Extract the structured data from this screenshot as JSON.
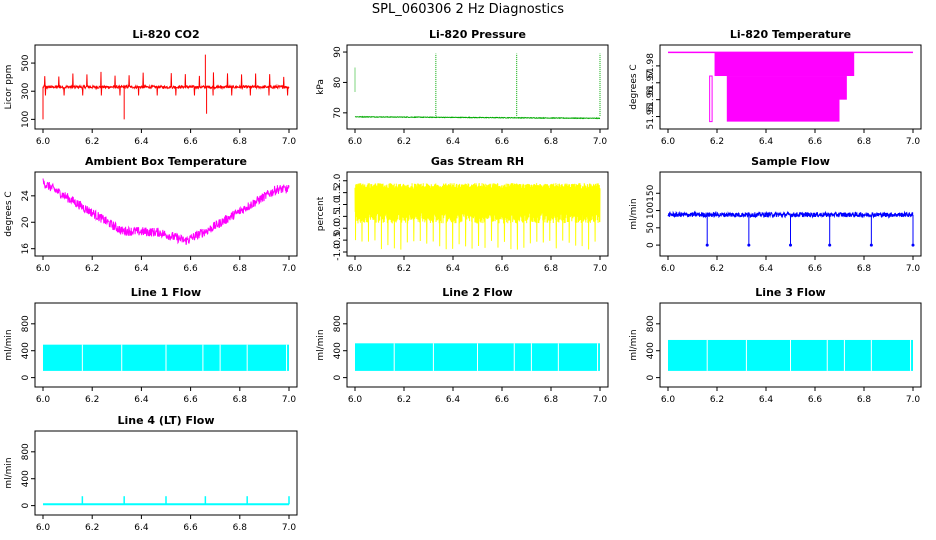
{
  "page_title": "SPL_060306  2 Hz Diagnostics",
  "chart_data": [
    {
      "id": "co2",
      "type": "line",
      "title": "Li-820 CO2",
      "ylabel": "Licor ppm",
      "color": "#ff0000",
      "xlim": [
        0.0,
        7.0
      ],
      "ylim": [
        60,
        600
      ],
      "xticks": [
        [
          "6.0",
          6.0
        ],
        [
          "6.2",
          6.2
        ],
        [
          "6.4",
          6.4
        ],
        [
          "6.6",
          6.6
        ],
        [
          "6.8",
          6.8
        ],
        [
          "7.0",
          7.0
        ]
      ],
      "yticks": [
        [
          "100",
          100
        ],
        [
          "300",
          300
        ],
        [
          "500",
          500
        ]
      ],
      "series": [
        {
          "pattern": "co2",
          "base": 330,
          "noise": 10,
          "spike_low": 100,
          "spike_high": 560,
          "spikes_at": [
            6.33,
            6.66
          ]
        }
      ]
    },
    {
      "id": "pressure",
      "type": "line",
      "title": "Li-820 Pressure",
      "ylabel": "kPa",
      "color": "#00aa00",
      "xlim": [
        0.0,
        7.0
      ],
      "ylim": [
        66,
        91
      ],
      "xticks": [
        [
          "6.0",
          6.0
        ],
        [
          "6.2",
          6.2
        ],
        [
          "6.4",
          6.4
        ],
        [
          "6.6",
          6.6
        ],
        [
          "6.8",
          6.8
        ],
        [
          "7.0",
          7.0
        ]
      ],
      "yticks": [
        [
          "70",
          70
        ],
        [
          "80",
          80
        ],
        [
          "90",
          90
        ]
      ],
      "series": [
        {
          "pattern": "pressure",
          "base_start": 68.7,
          "base_end": 68.2,
          "spike_high": 89.5,
          "spikes_at": [
            6.0,
            6.33,
            6.66,
            7.0
          ]
        }
      ]
    },
    {
      "id": "licor_temp",
      "type": "line",
      "title": "Li-820 Temperature",
      "ylabel": "degrees C",
      "color": "#ff00ff",
      "xlim": [
        0.0,
        7.0
      ],
      "ylim": [
        51.945,
        51.99
      ],
      "xticks": [
        [
          "6.0",
          6.0
        ],
        [
          "6.2",
          6.2
        ],
        [
          "6.4",
          6.4
        ],
        [
          "6.6",
          6.6
        ],
        [
          "6.8",
          6.8
        ],
        [
          "7.0",
          7.0
        ]
      ],
      "yticks": [
        [
          "51.95",
          51.95
        ],
        [
          "51.96",
          51.96
        ],
        [
          "51.97",
          51.97
        ],
        [
          "51.98",
          51.98
        ]
      ],
      "series": [
        {
          "pattern": "licortemp",
          "high": 51.988,
          "low": 51.947
        }
      ]
    },
    {
      "id": "box_temp",
      "type": "line",
      "title": "Ambient Box Temperature",
      "ylabel": "degrees C",
      "color": "#ff00ff",
      "xlim": [
        0.0,
        7.0
      ],
      "ylim": [
        15.5,
        27
      ],
      "xticks": [
        [
          "6.0",
          6.0
        ],
        [
          "6.2",
          6.2
        ],
        [
          "6.4",
          6.4
        ],
        [
          "6.6",
          6.6
        ],
        [
          "6.8",
          6.8
        ],
        [
          "7.0",
          7.0
        ]
      ],
      "yticks": [
        [
          "16",
          16
        ],
        [
          "20",
          20
        ],
        [
          "24",
          24
        ]
      ],
      "series": [
        {
          "pattern": "boxtemp"
        }
      ]
    },
    {
      "id": "rh",
      "type": "line",
      "title": "Gas Stream RH",
      "ylabel": "percent",
      "color": "#ffff00",
      "xlim": [
        0.0,
        7.0
      ],
      "ylim": [
        -1.0,
        2.2
      ],
      "xticks": [
        [
          "6.0",
          6.0
        ],
        [
          "6.2",
          6.2
        ],
        [
          "6.4",
          6.4
        ],
        [
          "6.6",
          6.6
        ],
        [
          "6.8",
          6.8
        ],
        [
          "7.0",
          7.0
        ]
      ],
      "yticks": [
        [
          "-1.0",
          -1.0
        ],
        [
          "-0.5",
          -0.5
        ],
        [
          "0.0",
          0.0
        ],
        [
          "0.5",
          0.5
        ],
        [
          "1.0",
          1.0
        ],
        [
          "1.5",
          1.5
        ],
        [
          "2.0",
          2.0
        ]
      ],
      "series": [
        {
          "pattern": "rh",
          "low": 0.2,
          "high": 1.9
        }
      ]
    },
    {
      "id": "sample_flow",
      "type": "line",
      "title": "Sample Flow",
      "ylabel": "ml/min",
      "color": "#0000ff",
      "xlim": [
        0.0,
        7.0
      ],
      "ylim": [
        -20,
        200
      ],
      "xticks": [
        [
          "6.0",
          6.0
        ],
        [
          "6.2",
          6.2
        ],
        [
          "6.4",
          6.4
        ],
        [
          "6.6",
          6.6
        ],
        [
          "6.8",
          6.8
        ],
        [
          "7.0",
          7.0
        ]
      ],
      "yticks": [
        [
          "0",
          0
        ],
        [
          "50",
          50
        ],
        [
          "100",
          100
        ],
        [
          "150",
          150
        ]
      ],
      "series": [
        {
          "pattern": "sampleflow",
          "base": 88,
          "dips_at": [
            6.16,
            6.33,
            6.5,
            6.66,
            6.83,
            7.0
          ]
        }
      ]
    },
    {
      "id": "line1",
      "type": "line",
      "title": "Line 1 Flow",
      "ylabel": "ml/min",
      "color": "#00ffff",
      "xlim": [
        0.0,
        7.0
      ],
      "ylim": [
        -80,
        1050
      ],
      "xticks": [
        [
          "6.0",
          6.0
        ],
        [
          "6.2",
          6.2
        ],
        [
          "6.4",
          6.4
        ],
        [
          "6.6",
          6.6
        ],
        [
          "6.8",
          6.8
        ],
        [
          "7.0",
          7.0
        ]
      ],
      "yticks": [
        [
          "0",
          0
        ],
        [
          "400",
          400
        ],
        [
          "800",
          800
        ]
      ],
      "series": [
        {
          "pattern": "band",
          "low": 100,
          "high": 490
        }
      ]
    },
    {
      "id": "line2",
      "type": "line",
      "title": "Line 2 Flow",
      "ylabel": "ml/min",
      "color": "#00ffff",
      "xlim": [
        0.0,
        7.0
      ],
      "ylim": [
        -80,
        1050
      ],
      "xticks": [
        [
          "6.0",
          6.0
        ],
        [
          "6.2",
          6.2
        ],
        [
          "6.4",
          6.4
        ],
        [
          "6.6",
          6.6
        ],
        [
          "6.8",
          6.8
        ],
        [
          "7.0",
          7.0
        ]
      ],
      "yticks": [
        [
          "0",
          0
        ],
        [
          "400",
          400
        ],
        [
          "800",
          800
        ]
      ],
      "series": [
        {
          "pattern": "band",
          "low": 100,
          "high": 510
        }
      ]
    },
    {
      "id": "line3",
      "type": "line",
      "title": "Line 3 Flow",
      "ylabel": "ml/min",
      "color": "#00ffff",
      "xlim": [
        0.0,
        7.0
      ],
      "ylim": [
        -80,
        1050
      ],
      "xticks": [
        [
          "6.0",
          6.0
        ],
        [
          "6.2",
          6.2
        ],
        [
          "6.4",
          6.4
        ],
        [
          "6.6",
          6.6
        ],
        [
          "6.8",
          6.8
        ],
        [
          "7.0",
          7.0
        ]
      ],
      "yticks": [
        [
          "0",
          0
        ],
        [
          "400",
          400
        ],
        [
          "800",
          800
        ]
      ],
      "series": [
        {
          "pattern": "band",
          "low": 100,
          "high": 560
        }
      ]
    },
    {
      "id": "line4",
      "type": "line",
      "title": "Line 4 (LT) Flow",
      "ylabel": "ml/min",
      "color": "#00ffff",
      "xlim": [
        0.0,
        7.0
      ],
      "ylim": [
        -80,
        1050
      ],
      "xticks": [
        [
          "6.0",
          6.0
        ],
        [
          "6.2",
          6.2
        ],
        [
          "6.4",
          6.4
        ],
        [
          "6.6",
          6.6
        ],
        [
          "6.8",
          6.8
        ],
        [
          "7.0",
          7.0
        ]
      ],
      "yticks": [
        [
          "0",
          0
        ],
        [
          "400",
          400
        ],
        [
          "800",
          800
        ]
      ],
      "series": [
        {
          "pattern": "flat",
          "base": 20,
          "spike_high": 140,
          "spikes_at": [
            6.16,
            6.33,
            6.5,
            6.66,
            6.83,
            7.0
          ]
        }
      ]
    }
  ]
}
